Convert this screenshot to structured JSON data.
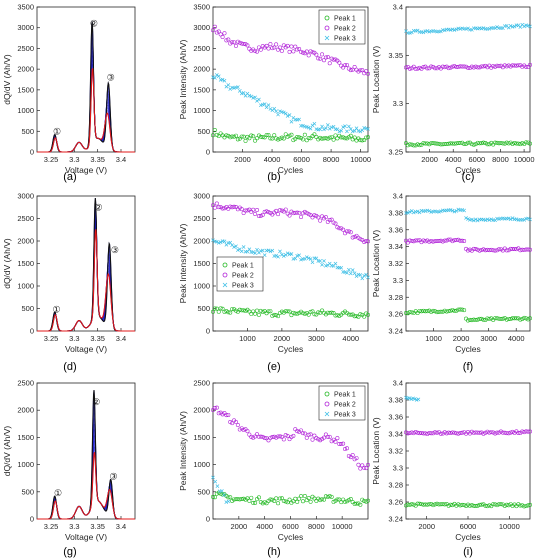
{
  "chart_data": [
    {
      "panel": "(a)",
      "type": "line",
      "xlabel": "Voltage (V)",
      "ylabel": "dQ/dV (Ah/V)",
      "xlim": [
        3.22,
        3.43
      ],
      "ylim": [
        0,
        3500
      ],
      "xticks": [
        3.25,
        3.3,
        3.35,
        3.4
      ],
      "xtick_labels": [
        "3.25",
        "3.3",
        "3.35",
        "3.4"
      ],
      "yticks": [
        0,
        500,
        1000,
        1500,
        2000,
        2500,
        3000,
        3500
      ],
      "peak_labels": [
        {
          "label": "①",
          "x": 3.263,
          "y": 500
        },
        {
          "label": "②",
          "x": 3.342,
          "y": 3100
        },
        {
          "label": "③",
          "x": 3.378,
          "y": 1800
        }
      ],
      "peaks": [
        {
          "x": 3.258,
          "first": 420,
          "last": 340
        },
        {
          "x": 3.338,
          "first": 2950,
          "last": 1800
        },
        {
          "x": 3.373,
          "first": 1600,
          "last": 850
        }
      ],
      "curve_count": 12,
      "colors": {
        "curves": "#1515c8",
        "first": "#111111",
        "last": "#e01818"
      }
    },
    {
      "panel": "(b)",
      "type": "scatter",
      "xlabel": "Cycles",
      "ylabel": "Peak Intensity (Ah/V)",
      "xlim": [
        0,
        10500
      ],
      "ylim": [
        0,
        3500
      ],
      "xticks": [
        2000,
        4000,
        6000,
        8000,
        10000
      ],
      "yticks": [
        0,
        500,
        1000,
        1500,
        2000,
        2500,
        3000,
        3500
      ],
      "legend": "top-right",
      "series": [
        {
          "name": "Peak 1",
          "color": "#22b822",
          "marker": "o",
          "x": [
            0,
            1000,
            2000,
            3000,
            4000,
            5000,
            6000,
            7000,
            8000,
            9000,
            10000,
            10500
          ],
          "values": [
            480,
            350,
            340,
            330,
            350,
            360,
            350,
            360,
            340,
            330,
            310,
            300
          ]
        },
        {
          "name": "Peak 2",
          "color": "#b020d8",
          "marker": "o",
          "x": [
            0,
            500,
            1000,
            2000,
            3000,
            4000,
            5000,
            6000,
            7000,
            8000,
            9000,
            10000,
            10500
          ],
          "values": [
            3000,
            2900,
            2700,
            2550,
            2500,
            2550,
            2500,
            2450,
            2350,
            2200,
            2050,
            1950,
            1900
          ]
        },
        {
          "name": "Peak 3",
          "color": "#3fbfe6",
          "marker": "x",
          "x": [
            0,
            1000,
            2000,
            3000,
            4000,
            5000,
            6000,
            7000,
            8000,
            9000,
            10000,
            10500
          ],
          "values": [
            1850,
            1600,
            1450,
            1250,
            1050,
            850,
            700,
            600,
            570,
            550,
            560,
            560
          ]
        }
      ]
    },
    {
      "panel": "(c)",
      "type": "scatter",
      "xlabel": "Cycles",
      "ylabel": "Peak Location (V)",
      "xlim": [
        0,
        10500
      ],
      "ylim": [
        3.25,
        3.4
      ],
      "xticks": [
        2000,
        4000,
        6000,
        8000,
        10000
      ],
      "yticks": [
        3.25,
        3.3,
        3.35,
        3.4
      ],
      "ytick_labels": [
        "3.25",
        "3.3",
        "3.35",
        "3.4"
      ],
      "series": [
        {
          "color": "#22b822",
          "marker": "o",
          "x": [
            0,
            10500
          ],
          "values": [
            3.258,
            3.259
          ]
        },
        {
          "color": "#b020d8",
          "marker": "o",
          "x": [
            0,
            10500
          ],
          "values": [
            3.337,
            3.339
          ]
        },
        {
          "color": "#3fbfe6",
          "marker": "x",
          "x": [
            0,
            5000,
            10500
          ],
          "values": [
            3.374,
            3.377,
            3.381
          ]
        }
      ]
    },
    {
      "panel": "(d)",
      "type": "line",
      "xlabel": "Voltage (V)",
      "ylabel": "dQ/dV (Ah/V)",
      "xlim": [
        3.22,
        3.43
      ],
      "ylim": [
        0,
        3000
      ],
      "xticks": [
        3.25,
        3.3,
        3.35,
        3.4
      ],
      "xtick_labels": [
        "3.25",
        "3.3",
        "3.35",
        "3.4"
      ],
      "yticks": [
        0,
        500,
        1000,
        1500,
        2000,
        2500,
        3000
      ],
      "peak_labels": [
        {
          "label": "①",
          "x": 3.262,
          "y": 480
        },
        {
          "label": "②",
          "x": 3.352,
          "y": 2750
        },
        {
          "label": "③",
          "x": 3.387,
          "y": 1800
        }
      ],
      "peaks": [
        {
          "x": 3.258,
          "first": 420,
          "last": 360
        },
        {
          "x": 3.345,
          "first": 2650,
          "last": 1950
        },
        {
          "x": 3.375,
          "first": 1900,
          "last": 1200
        }
      ],
      "curve_count": 12,
      "colors": {
        "curves": "#1515c8",
        "first": "#111111",
        "last": "#e01818"
      }
    },
    {
      "panel": "(e)",
      "type": "scatter",
      "xlabel": "Cycles",
      "ylabel": "Peak Intensity (Ah/V)",
      "xlim": [
        0,
        4500
      ],
      "ylim": [
        0,
        3000
      ],
      "xticks": [
        1000,
        2000,
        3000,
        4000
      ],
      "yticks": [
        0,
        500,
        1000,
        1500,
        2000,
        2500,
        3000
      ],
      "legend": "left",
      "series": [
        {
          "name": "Peak 1",
          "color": "#22b822",
          "marker": "o",
          "x": [
            0,
            1000,
            2000,
            3000,
            4000,
            4500
          ],
          "values": [
            470,
            410,
            390,
            400,
            380,
            370
          ]
        },
        {
          "name": "Peak 2",
          "color": "#b020d8",
          "marker": "o",
          "x": [
            0,
            500,
            1000,
            1500,
            2000,
            2500,
            3000,
            3500,
            4000,
            4500
          ],
          "values": [
            2800,
            2750,
            2650,
            2600,
            2650,
            2600,
            2550,
            2400,
            2150,
            2000
          ]
        },
        {
          "name": "Peak 3",
          "color": "#3fbfe6",
          "marker": "x",
          "x": [
            0,
            500,
            1000,
            1500,
            2000,
            2500,
            3000,
            3500,
            4000,
            4500
          ],
          "values": [
            2000,
            1900,
            1800,
            1750,
            1700,
            1650,
            1550,
            1450,
            1300,
            1200
          ]
        }
      ]
    },
    {
      "panel": "(f)",
      "type": "scatter",
      "xlabel": "Cycles",
      "ylabel": "Peak Location (V)",
      "xlim": [
        0,
        4500
      ],
      "ylim": [
        3.24,
        3.4
      ],
      "xticks": [
        1000,
        2000,
        3000,
        4000
      ],
      "yticks": [
        3.24,
        3.26,
        3.28,
        3.3,
        3.32,
        3.34,
        3.36,
        3.38,
        3.4
      ],
      "series": [
        {
          "color": "#22b822",
          "marker": "o",
          "x": [
            0,
            2100,
            2200,
            4500
          ],
          "values": [
            3.262,
            3.265,
            3.253,
            3.255
          ]
        },
        {
          "color": "#b020d8",
          "marker": "o",
          "x": [
            0,
            2100,
            2200,
            4500
          ],
          "values": [
            3.346,
            3.348,
            3.336,
            3.337
          ]
        },
        {
          "color": "#3fbfe6",
          "marker": "x",
          "x": [
            0,
            2100,
            2200,
            4500
          ],
          "values": [
            3.381,
            3.383,
            3.372,
            3.373
          ]
        }
      ]
    },
    {
      "panel": "(g)",
      "type": "line",
      "xlabel": "Voltage (V)",
      "ylabel": "dQ/dV (Ah/V)",
      "xlim": [
        3.22,
        3.43
      ],
      "ylim": [
        0,
        2500
      ],
      "xticks": [
        3.25,
        3.3,
        3.35,
        3.4
      ],
      "xtick_labels": [
        "3.25",
        "3.3",
        "3.35",
        "3.4"
      ],
      "yticks": [
        0,
        500,
        1000,
        1500,
        2000,
        2500
      ],
      "peak_labels": [
        {
          "label": "①",
          "x": 3.265,
          "y": 480
        },
        {
          "label": "②",
          "x": 3.347,
          "y": 2150
        },
        {
          "label": "③",
          "x": 3.384,
          "y": 780
        }
      ],
      "peaks": [
        {
          "x": 3.258,
          "first": 420,
          "last": 330
        },
        {
          "x": 3.342,
          "first": 2100,
          "last": 950
        },
        {
          "x": 3.378,
          "first": 700,
          "last": 500
        }
      ],
      "curve_count": 12,
      "colors": {
        "curves": "#1515c8",
        "first": "#111111",
        "last": "#e01818"
      }
    },
    {
      "panel": "(h)",
      "type": "scatter",
      "xlabel": "Cycles",
      "ylabel": "Peak Intensity (Ah/V)",
      "xlim": [
        0,
        12000
      ],
      "ylim": [
        0,
        2500
      ],
      "xticks": [
        2000,
        4000,
        6000,
        8000,
        10000
      ],
      "yticks": [
        0,
        500,
        1000,
        1500,
        2000,
        2500
      ],
      "legend": "top-right",
      "series": [
        {
          "name": "Peak 1",
          "color": "#22b822",
          "marker": "o",
          "x": [
            0,
            1000,
            2000,
            4000,
            6000,
            7000,
            8000,
            9000,
            10000,
            11000,
            12000
          ],
          "values": [
            460,
            400,
            360,
            340,
            340,
            380,
            360,
            370,
            350,
            320,
            300
          ]
        },
        {
          "name": "Peak 2",
          "color": "#b020d8",
          "marker": "o",
          "x": [
            0,
            1000,
            2000,
            3000,
            4000,
            5000,
            6000,
            6500,
            7000,
            8000,
            9000,
            10000,
            10500,
            11000,
            11500,
            12000
          ],
          "values": [
            2050,
            1900,
            1700,
            1550,
            1450,
            1500,
            1500,
            1650,
            1550,
            1500,
            1500,
            1400,
            1200,
            1100,
            950,
            950
          ]
        },
        {
          "name": "Peak 3",
          "color": "#3fbfe6",
          "marker": "x",
          "x": [
            0,
            300,
            600,
            900,
            1200
          ],
          "values": [
            750,
            600,
            500,
            400,
            320
          ]
        }
      ]
    },
    {
      "panel": "(i)",
      "type": "scatter",
      "xlabel": "Cycles",
      "ylabel": "Peak Location (V)",
      "xlim": [
        0,
        12000
      ],
      "ylim": [
        3.24,
        3.4
      ],
      "xticks": [
        2000,
        6000,
        10000
      ],
      "yticks": [
        3.24,
        3.26,
        3.28,
        3.3,
        3.32,
        3.34,
        3.36,
        3.38,
        3.4
      ],
      "series": [
        {
          "color": "#22b822",
          "marker": "o",
          "x": [
            0,
            12000
          ],
          "values": [
            3.257,
            3.256
          ]
        },
        {
          "color": "#b020d8",
          "marker": "o",
          "x": [
            0,
            12000
          ],
          "values": [
            3.341,
            3.342
          ]
        },
        {
          "color": "#3fbfe6",
          "marker": "x",
          "x": [
            0,
            1200
          ],
          "values": [
            3.383,
            3.38
          ]
        }
      ]
    }
  ]
}
